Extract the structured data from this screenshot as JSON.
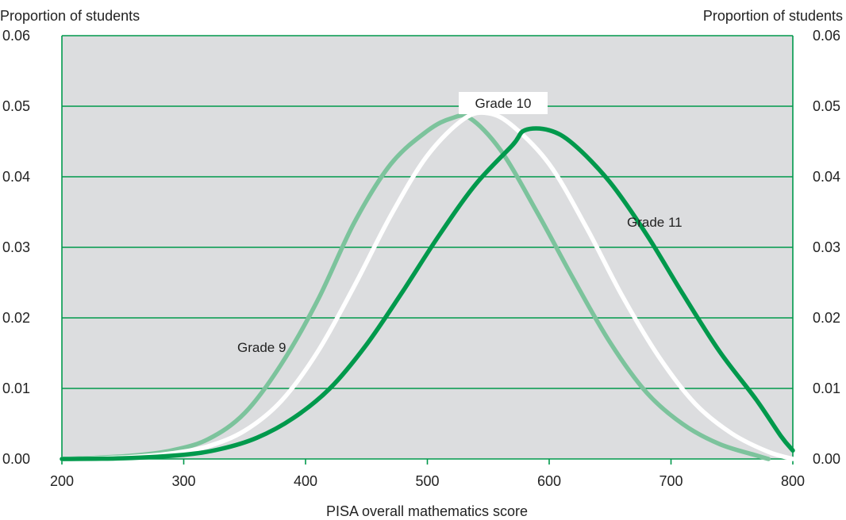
{
  "chart_data": {
    "type": "line",
    "left_axis_title": "Proportion of students",
    "right_axis_title": "Proportion of students",
    "xlabel": "PISA overall mathematics score",
    "xlim": [
      200,
      800
    ],
    "ylim": [
      0,
      0.06
    ],
    "x_ticks": [
      "200",
      "300",
      "400",
      "500",
      "600",
      "700",
      "800"
    ],
    "y_ticks": [
      "0.00",
      "0.01",
      "0.02",
      "0.03",
      "0.04",
      "0.05",
      "0.06"
    ],
    "grid": "horizontal",
    "background_color": "#dcdddf",
    "grid_color": "#00994c",
    "series": [
      {
        "name": "Grade 9",
        "color": "#7cc39c",
        "points": [
          [
            200,
            0
          ],
          [
            230,
            0.0002
          ],
          [
            260,
            0.0005
          ],
          [
            290,
            0.0012
          ],
          [
            320,
            0.0028
          ],
          [
            350,
            0.0065
          ],
          [
            380,
            0.0134
          ],
          [
            410,
            0.0225
          ],
          [
            440,
            0.0335
          ],
          [
            470,
            0.0418
          ],
          [
            500,
            0.0465
          ],
          [
            520,
            0.0483
          ],
          [
            535,
            0.0483
          ],
          [
            560,
            0.0438
          ],
          [
            590,
            0.035
          ],
          [
            620,
            0.0255
          ],
          [
            650,
            0.0165
          ],
          [
            680,
            0.0094
          ],
          [
            710,
            0.0049
          ],
          [
            740,
            0.0021
          ],
          [
            770,
            0.0005
          ],
          [
            780,
            0
          ]
        ]
      },
      {
        "name": "Grade 10",
        "color": "#ffffff",
        "points": [
          [
            200,
            0
          ],
          [
            230,
            0.0001
          ],
          [
            260,
            0.0003
          ],
          [
            290,
            0.0008
          ],
          [
            320,
            0.0018
          ],
          [
            350,
            0.004
          ],
          [
            380,
            0.0082
          ],
          [
            410,
            0.0152
          ],
          [
            440,
            0.0245
          ],
          [
            470,
            0.0345
          ],
          [
            500,
            0.043
          ],
          [
            530,
            0.0482
          ],
          [
            550,
            0.049
          ],
          [
            570,
            0.0472
          ],
          [
            600,
            0.0418
          ],
          [
            630,
            0.033
          ],
          [
            660,
            0.0231
          ],
          [
            690,
            0.0145
          ],
          [
            720,
            0.0078
          ],
          [
            750,
            0.0036
          ],
          [
            780,
            0.001
          ],
          [
            800,
            0
          ]
        ]
      },
      {
        "name": "Grade 11",
        "color": "#00994c",
        "points": [
          [
            200,
            0
          ],
          [
            250,
            0.0001
          ],
          [
            300,
            0.0006
          ],
          [
            330,
            0.0014
          ],
          [
            360,
            0.003
          ],
          [
            390,
            0.0058
          ],
          [
            420,
            0.01
          ],
          [
            450,
            0.0162
          ],
          [
            480,
            0.0238
          ],
          [
            510,
            0.0318
          ],
          [
            540,
            0.039
          ],
          [
            570,
            0.0445
          ],
          [
            580,
            0.0466
          ],
          [
            600,
            0.0466
          ],
          [
            620,
            0.0446
          ],
          [
            650,
            0.0392
          ],
          [
            680,
            0.0318
          ],
          [
            710,
            0.0233
          ],
          [
            740,
            0.0152
          ],
          [
            770,
            0.0084
          ],
          [
            790,
            0.0033
          ],
          [
            800,
            0.0012
          ]
        ]
      }
    ]
  }
}
